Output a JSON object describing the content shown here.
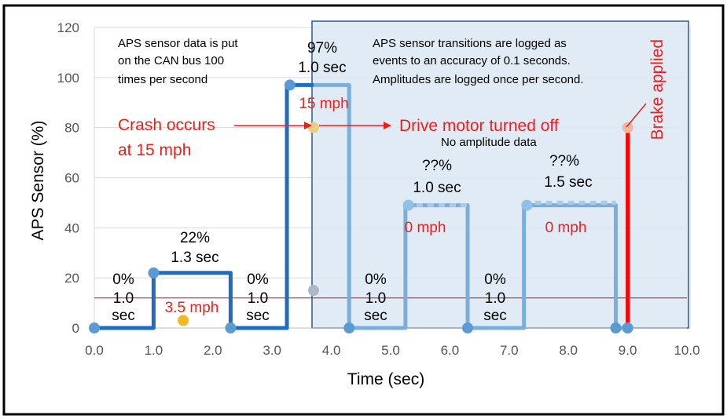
{
  "chart_data": {
    "type": "line",
    "xlabel": "Time (sec)",
    "ylabel": "APS Sensor (%)",
    "xlim": [
      0,
      10
    ],
    "ylim": [
      0,
      120
    ],
    "x_ticks": [
      "0.0",
      "1.0",
      "2.0",
      "3.0",
      "4.0",
      "5.0",
      "6.0",
      "7.0",
      "8.0",
      "9.0",
      "10.0"
    ],
    "y_ticks": [
      "0",
      "20",
      "40",
      "60",
      "80",
      "100",
      "120"
    ],
    "grid": "horizontal",
    "reference_line_y": 12,
    "logged_region_x": [
      3.7,
      10.0
    ],
    "series": [
      {
        "color": "#1f6dbf",
        "x": [
          0.0,
          1.0,
          1.0,
          2.3,
          2.3,
          3.25,
          3.25,
          3.7
        ],
        "y": [
          0,
          0,
          22,
          22,
          0,
          0,
          97,
          97
        ]
      },
      {
        "color": "#7aaedb",
        "x": [
          3.7,
          4.3,
          4.3,
          5.25,
          5.25,
          6.3,
          6.3,
          7.25,
          7.25,
          8.8,
          8.8,
          9.0
        ],
        "y": [
          97,
          97,
          0,
          0,
          49,
          49,
          0,
          0,
          49,
          49,
          0,
          0
        ]
      },
      {
        "color": "#ff0000",
        "x": [
          9.0,
          9.0
        ],
        "y": [
          0,
          80
        ]
      }
    ],
    "points": [
      {
        "x": 0.0,
        "y": 0,
        "color": "#5b9bd5"
      },
      {
        "x": 1.0,
        "y": 22,
        "color": "#5b9bd5"
      },
      {
        "x": 2.3,
        "y": 0,
        "color": "#5b9bd5"
      },
      {
        "x": 3.3,
        "y": 97,
        "color": "#5b9bd5"
      },
      {
        "x": 4.3,
        "y": 0,
        "color": "#5b9bd5"
      },
      {
        "x": 5.3,
        "y": 49,
        "color": "#8ec0e8"
      },
      {
        "x": 6.3,
        "y": 0,
        "color": "#5b9bd5"
      },
      {
        "x": 7.3,
        "y": 49,
        "color": "#8ec0e8"
      },
      {
        "x": 8.8,
        "y": 0,
        "color": "#5b9bd5"
      },
      {
        "x": 9.0,
        "y": 0,
        "color": "#5b9bd5"
      },
      {
        "x": 9.0,
        "y": 80,
        "color": "#f0b8a0"
      },
      {
        "x": 3.7,
        "y": 80,
        "color": "#e8d080"
      },
      {
        "x": 3.7,
        "y": 15,
        "color": "#b0b8c8"
      },
      {
        "x": 1.5,
        "y": 3,
        "color": "#f5b820"
      }
    ],
    "notes": {
      "can_bus": [
        "APS sensor data is put",
        "on the CAN bus 100",
        "times per second"
      ],
      "logging": [
        "APS sensor transitions are logged as",
        "events to an accuracy of 0.1 seconds.",
        "Amplitudes are logged once per second."
      ],
      "crash": [
        "Crash occurs",
        "at 15 mph"
      ],
      "motor_off": "Drive motor turned off",
      "no_amplitude": "No amplitude data",
      "brake": "Brake applied"
    },
    "segment_labels": {
      "s1": [
        "0%",
        "1.0",
        "sec"
      ],
      "s2": [
        "22%",
        "1.3 sec"
      ],
      "s2_speed": "3.5 mph",
      "s3": [
        "0%",
        "1.0",
        "sec"
      ],
      "s4": [
        "97%",
        "1.0 sec"
      ],
      "s4_speed": "15 mph",
      "s5": [
        "0%",
        "1.0",
        "sec"
      ],
      "s6": [
        "??%",
        "1.0 sec"
      ],
      "s6_speed": "0 mph",
      "s7": [
        "0%",
        "1.0",
        "sec"
      ],
      "s8": [
        "??%",
        "1.5 sec"
      ],
      "s8_speed": "0 mph"
    }
  }
}
